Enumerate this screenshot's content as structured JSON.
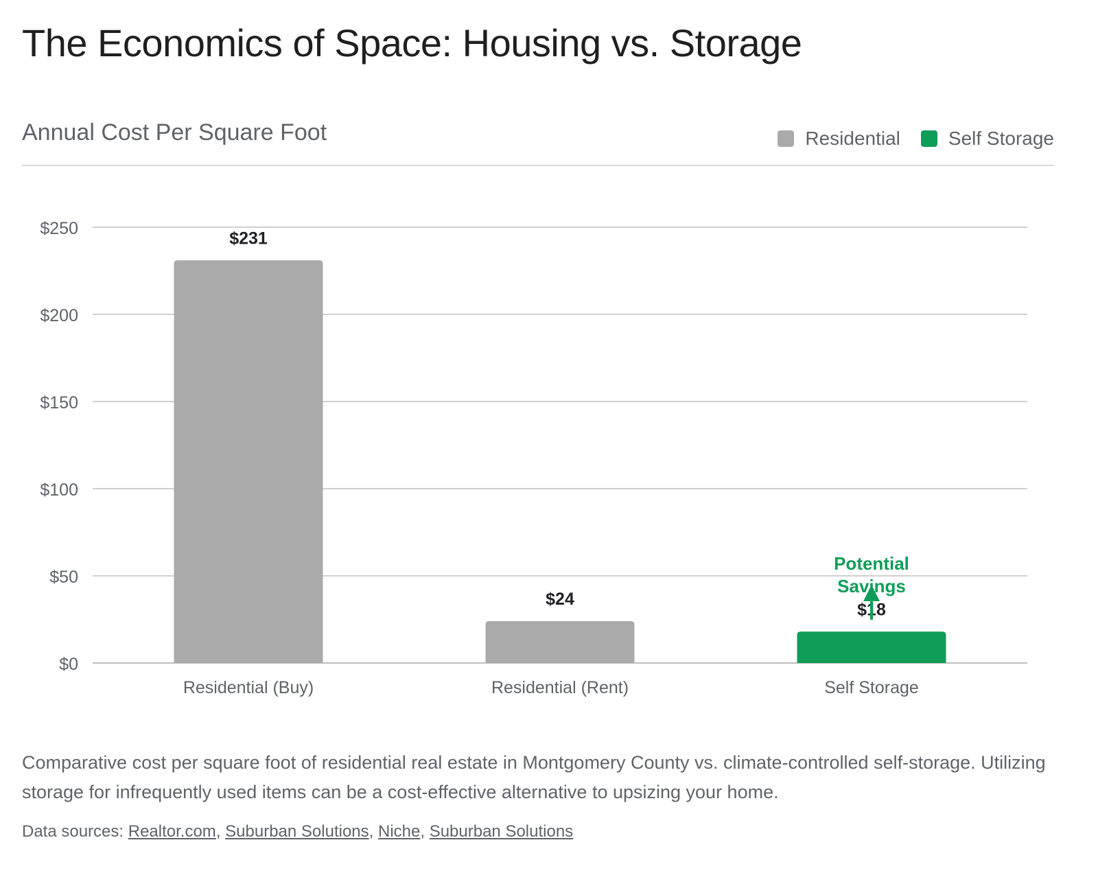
{
  "title": "The Economics of Space: Housing vs. Storage",
  "subtitle": "Annual Cost Per Square Foot",
  "legend": [
    {
      "label": "Residential",
      "color": "#aaaaaa"
    },
    {
      "label": "Self Storage",
      "color": "#0f9d58"
    }
  ],
  "chart_data": {
    "type": "bar",
    "title": "Annual Cost Per Square Foot",
    "categories": [
      "Residential (Buy)",
      "Residential (Rent)",
      "Self Storage"
    ],
    "values": [
      231,
      24,
      18
    ],
    "value_labels": [
      "$231",
      "$24",
      "$18"
    ],
    "series_of_category": [
      "Residential",
      "Residential",
      "Self Storage"
    ],
    "colors": [
      "#aaaaaa",
      "#aaaaaa",
      "#0f9d58"
    ],
    "ylim": [
      0,
      250
    ],
    "yticks": [
      0,
      50,
      100,
      150,
      200,
      250
    ],
    "ytick_labels": [
      "$0",
      "$50",
      "$100",
      "$150",
      "$200",
      "$250"
    ],
    "xlabel": "",
    "ylabel": "",
    "grid": true,
    "legend_position": "top-right",
    "annotation": {
      "text_lines": [
        "Potential",
        "Savings"
      ],
      "category": "Self Storage",
      "color": "#0f9d58"
    }
  },
  "caption": "Comparative cost per square foot of residential real estate in Montgomery County vs. climate-controlled self-storage. Utilizing storage for infrequently used items can be a cost-effective alternative to upsizing your home.",
  "sources": {
    "label": "Data sources:",
    "links": [
      "Realtor.com",
      "Suburban Solutions",
      "Niche",
      "Suburban Solutions"
    ]
  }
}
